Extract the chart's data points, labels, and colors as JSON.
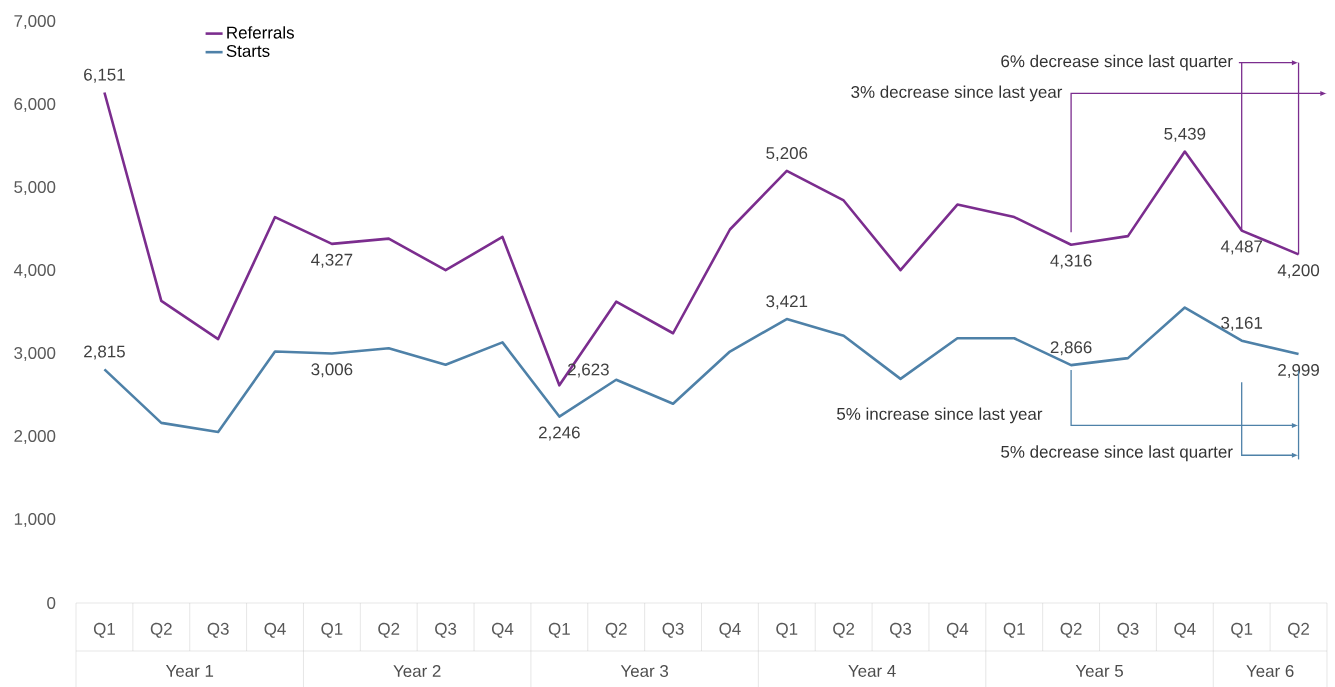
{
  "chart_data": {
    "type": "line",
    "categories": [
      "Q1",
      "Q2",
      "Q3",
      "Q4",
      "Q1",
      "Q2",
      "Q3",
      "Q4",
      "Q1",
      "Q2",
      "Q3",
      "Q4",
      "Q1",
      "Q2",
      "Q3",
      "Q4",
      "Q1",
      "Q2",
      "Q3",
      "Q4",
      "Q1",
      "Q2"
    ],
    "series": [
      {
        "name": "Referrals",
        "color": "#7b2d8e",
        "values": [
          6151,
          3640,
          3180,
          4650,
          4327,
          4390,
          4010,
          4410,
          2623,
          3630,
          3250,
          4500,
          5206,
          4850,
          4010,
          4800,
          4650,
          4316,
          4420,
          5439,
          4487,
          4200
        ],
        "value_labels": [
          "6,151",
          null,
          null,
          null,
          "4,327",
          null,
          null,
          null,
          "2,623",
          null,
          null,
          null,
          "5,206",
          null,
          null,
          null,
          null,
          "4,316",
          null,
          "5,439",
          "4,487",
          "4,200"
        ]
      },
      {
        "name": "Starts",
        "color": "#4e81a8",
        "values": [
          2815,
          2170,
          2060,
          3030,
          3006,
          3070,
          2870,
          3140,
          2246,
          2690,
          2400,
          3030,
          3421,
          3220,
          2700,
          3190,
          3190,
          2866,
          2950,
          3560,
          3161,
          2999
        ],
        "value_labels": [
          "2,815",
          null,
          null,
          null,
          "3,006",
          null,
          null,
          null,
          "2,246",
          null,
          null,
          null,
          "3,421",
          null,
          null,
          null,
          null,
          "2,866",
          null,
          null,
          "3,161",
          "2,999"
        ]
      }
    ],
    "ylim": [
      0,
      7000
    ],
    "yticks": [
      0,
      {
        "value": 1000,
        "label": "1,000"
      },
      {
        "value": 2000,
        "label": "2,000"
      },
      {
        "value": 3000,
        "label": "3,000"
      },
      {
        "value": 4000,
        "label": "4,000"
      },
      {
        "value": 5000,
        "label": "5,000"
      },
      {
        "value": 6000,
        "label": "6,000"
      },
      {
        "value": 7000,
        "label": "7,000"
      }
    ],
    "annotations": [
      "6% decrease since last quarter",
      "3% decrease since last year",
      "5% increase since last year",
      "5% decrease since last quarter",
      "Year 1",
      "Year 2",
      "Year 3",
      "Year 4",
      "Year 5",
      "Year 6"
    ],
    "legend": "top left",
    "marker": "none",
    "line_style": "solid"
  }
}
